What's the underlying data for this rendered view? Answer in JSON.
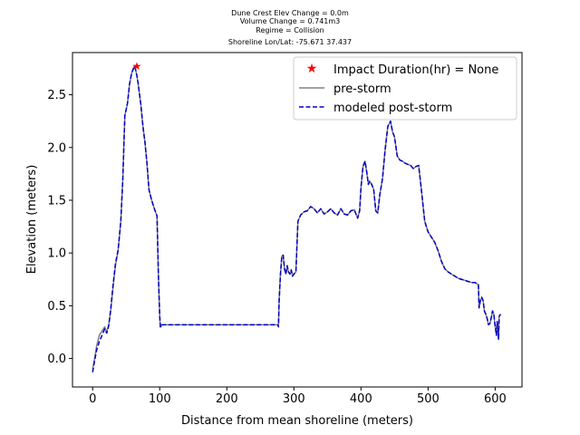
{
  "chart_data": {
    "type": "line",
    "title_lines": [
      "Dune Crest Elev Change = 0.0m",
      "Volume Change = 0.741m3",
      "Regime = Collision",
      "Shoreline Lon/Lat: -75.671 37.437"
    ],
    "xlabel": "Distance from mean shoreline (meters)",
    "ylabel": "Elevation (meters)",
    "xlim": [
      -30,
      640
    ],
    "ylim": [
      -0.27,
      2.9
    ],
    "xticks": [
      0,
      100,
      200,
      300,
      400,
      500,
      600
    ],
    "yticks": [
      0.0,
      0.5,
      1.0,
      1.5,
      2.0,
      2.5
    ],
    "xtick_labels": [
      "0",
      "100",
      "200",
      "300",
      "400",
      "500",
      "600"
    ],
    "ytick_labels": [
      "0.0",
      "0.5",
      "1.0",
      "1.5",
      "2.0",
      "2.5"
    ],
    "grid": false,
    "legend": {
      "placement": "top-right",
      "entries": [
        {
          "label": "Impact Duration(hr) = None",
          "marker": "star",
          "color": "#ff0000"
        },
        {
          "label": "pre-storm",
          "style": "solid",
          "color": "#808080"
        },
        {
          "label": "modeled post-storm",
          "style": "dashed",
          "color": "#0000cc"
        }
      ]
    },
    "marker_point": {
      "x": 66,
      "y": 2.77,
      "color": "#ff0000"
    },
    "series": [
      {
        "name": "pre-storm",
        "color": "#808080",
        "style": "solid",
        "x": [
          0,
          3,
          6,
          10,
          14,
          18,
          21,
          24,
          27,
          30,
          34,
          38,
          42,
          45,
          48,
          52,
          55,
          58,
          62,
          64,
          66,
          68,
          70,
          72,
          75,
          78,
          81,
          84,
          88,
          92,
          96,
          98,
          100,
          101,
          102,
          103,
          105,
          110,
          150,
          200,
          250,
          270,
          276,
          277,
          278,
          280,
          282,
          284,
          286,
          288,
          290,
          292,
          294,
          296,
          298,
          300,
          303,
          306,
          310,
          315,
          320,
          325,
          330,
          335,
          340,
          345,
          350,
          355,
          360,
          365,
          370,
          375,
          380,
          385,
          390,
          395,
          398,
          400,
          403,
          406,
          409,
          411,
          413,
          416,
          419,
          422,
          425,
          428,
          432,
          436,
          440,
          444,
          447,
          450,
          454,
          458,
          462,
          466,
          470,
          474,
          478,
          482,
          486,
          490,
          495,
          500,
          505,
          510,
          515,
          520,
          525,
          530,
          535,
          540,
          545,
          550,
          555,
          560,
          565,
          570,
          575,
          576,
          578,
          580,
          582,
          584,
          586,
          588,
          590,
          592,
          594,
          596,
          598,
          600,
          602,
          603,
          604,
          605,
          606,
          608
        ],
        "y": [
          -0.1,
          0.0,
          0.12,
          0.22,
          0.26,
          0.3,
          0.25,
          0.32,
          0.45,
          0.65,
          0.88,
          1.02,
          1.3,
          1.7,
          2.3,
          2.42,
          2.6,
          2.7,
          2.77,
          2.74,
          2.68,
          2.6,
          2.5,
          2.4,
          2.2,
          2.05,
          1.85,
          1.6,
          1.5,
          1.42,
          1.35,
          0.8,
          0.4,
          0.3,
          0.3,
          0.32,
          0.32,
          0.32,
          0.32,
          0.32,
          0.32,
          0.32,
          0.32,
          0.3,
          0.55,
          0.8,
          0.97,
          0.98,
          0.85,
          0.8,
          0.88,
          0.82,
          0.8,
          0.84,
          0.78,
          0.8,
          0.82,
          1.3,
          1.36,
          1.39,
          1.4,
          1.44,
          1.42,
          1.38,
          1.42,
          1.37,
          1.39,
          1.42,
          1.38,
          1.36,
          1.42,
          1.37,
          1.36,
          1.4,
          1.41,
          1.33,
          1.4,
          1.62,
          1.82,
          1.87,
          1.75,
          1.65,
          1.68,
          1.65,
          1.6,
          1.4,
          1.38,
          1.55,
          1.7,
          1.98,
          2.2,
          2.25,
          2.15,
          2.1,
          1.92,
          1.88,
          1.87,
          1.85,
          1.84,
          1.83,
          1.8,
          1.82,
          1.83,
          1.6,
          1.3,
          1.2,
          1.15,
          1.1,
          1.02,
          0.92,
          0.85,
          0.82,
          0.8,
          0.78,
          0.76,
          0.75,
          0.74,
          0.73,
          0.72,
          0.72,
          0.7,
          0.48,
          0.55,
          0.58,
          0.55,
          0.45,
          0.42,
          0.38,
          0.32,
          0.33,
          0.38,
          0.45,
          0.42,
          0.3,
          0.22,
          0.35,
          0.3,
          0.18,
          0.4,
          0.42
        ]
      },
      {
        "name": "modeled post-storm",
        "color": "#0000cc",
        "style": "dashed",
        "x": [
          0,
          3,
          6,
          10,
          14,
          18,
          21,
          24,
          27,
          30,
          34,
          38,
          42,
          45,
          48,
          52,
          55,
          58,
          62,
          64,
          66,
          68,
          70,
          72,
          75,
          78,
          81,
          84,
          88,
          92,
          96,
          98,
          100,
          101,
          102,
          103,
          105,
          110,
          150,
          200,
          250,
          270,
          276,
          277,
          278,
          280,
          282,
          284,
          286,
          288,
          290,
          292,
          294,
          296,
          298,
          300,
          303,
          306,
          310,
          315,
          320,
          325,
          330,
          335,
          340,
          345,
          350,
          355,
          360,
          365,
          370,
          375,
          380,
          385,
          390,
          395,
          398,
          400,
          403,
          406,
          409,
          411,
          413,
          416,
          419,
          422,
          425,
          428,
          432,
          436,
          440,
          444,
          447,
          450,
          454,
          458,
          462,
          466,
          470,
          474,
          478,
          482,
          486,
          490,
          495,
          500,
          505,
          510,
          515,
          520,
          525,
          530,
          535,
          540,
          545,
          550,
          555,
          560,
          565,
          570,
          575,
          576,
          578,
          580,
          582,
          584,
          586,
          588,
          590,
          592,
          594,
          596,
          598,
          600,
          602,
          603,
          604,
          605,
          606,
          608
        ],
        "y": [
          -0.13,
          -0.02,
          0.08,
          0.16,
          0.22,
          0.28,
          0.24,
          0.31,
          0.47,
          0.67,
          0.9,
          1.03,
          1.3,
          1.7,
          2.3,
          2.42,
          2.6,
          2.7,
          2.77,
          2.74,
          2.68,
          2.6,
          2.5,
          2.4,
          2.2,
          2.05,
          1.85,
          1.6,
          1.5,
          1.42,
          1.35,
          0.8,
          0.4,
          0.3,
          0.3,
          0.32,
          0.32,
          0.32,
          0.32,
          0.32,
          0.32,
          0.32,
          0.32,
          0.3,
          0.55,
          0.8,
          0.97,
          0.98,
          0.85,
          0.8,
          0.88,
          0.82,
          0.8,
          0.84,
          0.78,
          0.8,
          0.82,
          1.3,
          1.36,
          1.39,
          1.4,
          1.44,
          1.42,
          1.38,
          1.42,
          1.37,
          1.39,
          1.42,
          1.38,
          1.36,
          1.42,
          1.37,
          1.36,
          1.4,
          1.41,
          1.33,
          1.4,
          1.62,
          1.82,
          1.87,
          1.75,
          1.65,
          1.68,
          1.65,
          1.6,
          1.4,
          1.38,
          1.55,
          1.7,
          1.98,
          2.2,
          2.25,
          2.15,
          2.1,
          1.92,
          1.88,
          1.87,
          1.85,
          1.84,
          1.83,
          1.8,
          1.82,
          1.83,
          1.6,
          1.3,
          1.2,
          1.15,
          1.1,
          1.02,
          0.92,
          0.85,
          0.82,
          0.8,
          0.78,
          0.76,
          0.75,
          0.74,
          0.73,
          0.72,
          0.72,
          0.7,
          0.48,
          0.55,
          0.58,
          0.55,
          0.45,
          0.42,
          0.38,
          0.32,
          0.33,
          0.38,
          0.45,
          0.42,
          0.3,
          0.22,
          0.35,
          0.3,
          0.18,
          0.4,
          0.42
        ]
      }
    ]
  }
}
